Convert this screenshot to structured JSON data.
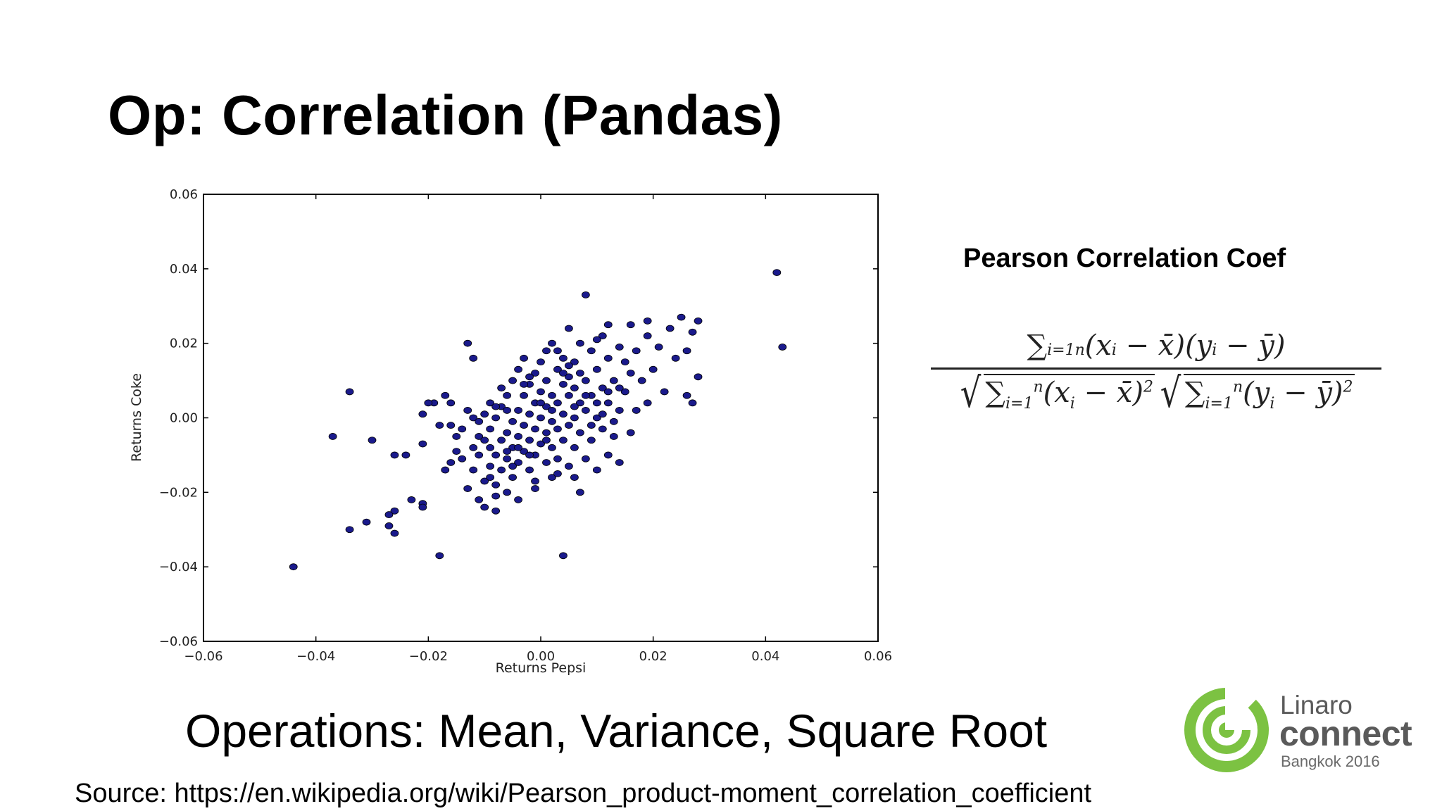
{
  "slide": {
    "title": "Op: Correlation (Pandas)",
    "subtitle": "Operations: Mean, Variance, Square Root",
    "source": "Source: https://en.wikipedia.org/wiki/Pearson_product-moment_correlation_coefficient"
  },
  "formula": {
    "heading": "Pearson Correlation Coef",
    "numerator": "∑i=1n (xi − x̄)(yi − ȳ)",
    "denominator": "√∑i=1n (xi − x̄)² √∑i=1n (yi − ȳ)²"
  },
  "logo": {
    "line1": "Linaro",
    "line2": "connect",
    "line3": "Bangkok 2016",
    "ring_color": "#7cc242"
  },
  "chart_data": {
    "type": "scatter",
    "xlabel": "Returns Pepsi",
    "ylabel": "Returns Coke",
    "xlim": [
      -0.06,
      0.06
    ],
    "ylim": [
      -0.06,
      0.06
    ],
    "xticks": [
      "−0.06",
      "−0.04",
      "−0.02",
      "0.00",
      "0.02",
      "0.04",
      "0.06"
    ],
    "yticks": [
      "0.06",
      "0.04",
      "0.02",
      "0.00",
      "−0.02",
      "−0.04",
      "−0.06"
    ],
    "marker_color": "#1a1a8c",
    "points": [
      [
        -0.044,
        -0.04
      ],
      [
        -0.034,
        -0.03
      ],
      [
        -0.031,
        -0.028
      ],
      [
        -0.027,
        -0.029
      ],
      [
        -0.026,
        -0.031
      ],
      [
        -0.026,
        -0.025
      ],
      [
        -0.027,
        -0.026
      ],
      [
        -0.023,
        -0.022
      ],
      [
        -0.021,
        -0.023
      ],
      [
        -0.021,
        -0.024
      ],
      [
        -0.018,
        -0.037
      ],
      [
        -0.037,
        -0.005
      ],
      [
        -0.034,
        0.007
      ],
      [
        -0.03,
        -0.006
      ],
      [
        -0.026,
        -0.01
      ],
      [
        -0.024,
        -0.01
      ],
      [
        -0.021,
        -0.007
      ],
      [
        -0.021,
        0.001
      ],
      [
        -0.019,
        0.004
      ],
      [
        -0.018,
        -0.002
      ],
      [
        -0.017,
        -0.014
      ],
      [
        -0.017,
        0.006
      ],
      [
        -0.016,
        -0.012
      ],
      [
        -0.016,
        -0.002
      ],
      [
        -0.015,
        -0.009
      ],
      [
        -0.015,
        -0.005
      ],
      [
        -0.014,
        -0.011
      ],
      [
        -0.014,
        -0.003
      ],
      [
        -0.013,
        0.002
      ],
      [
        -0.013,
        -0.019
      ],
      [
        -0.013,
        0.02
      ],
      [
        -0.012,
        0.016
      ],
      [
        -0.012,
        -0.008
      ],
      [
        -0.012,
        -0.014
      ],
      [
        -0.011,
        -0.022
      ],
      [
        -0.011,
        -0.01
      ],
      [
        -0.011,
        -0.005
      ],
      [
        -0.01,
        -0.024
      ],
      [
        -0.01,
        -0.017
      ],
      [
        -0.01,
        0.001
      ],
      [
        -0.009,
        -0.013
      ],
      [
        -0.009,
        -0.008
      ],
      [
        -0.009,
        -0.003
      ],
      [
        -0.009,
        0.004
      ],
      [
        -0.008,
        -0.025
      ],
      [
        -0.008,
        -0.018
      ],
      [
        -0.008,
        -0.01
      ],
      [
        -0.008,
        0.0
      ],
      [
        -0.007,
        -0.014
      ],
      [
        -0.007,
        -0.006
      ],
      [
        -0.007,
        0.003
      ],
      [
        -0.006,
        -0.02
      ],
      [
        -0.006,
        -0.011
      ],
      [
        -0.006,
        -0.004
      ],
      [
        -0.006,
        0.006
      ],
      [
        -0.005,
        -0.016
      ],
      [
        -0.005,
        -0.008
      ],
      [
        -0.005,
        -0.001
      ],
      [
        -0.005,
        0.01
      ],
      [
        -0.004,
        -0.022
      ],
      [
        -0.004,
        -0.012
      ],
      [
        -0.004,
        -0.005
      ],
      [
        -0.004,
        0.002
      ],
      [
        -0.004,
        0.013
      ],
      [
        -0.003,
        -0.009
      ],
      [
        -0.003,
        -0.002
      ],
      [
        -0.003,
        0.006
      ],
      [
        -0.003,
        0.016
      ],
      [
        -0.002,
        -0.014
      ],
      [
        -0.002,
        -0.006
      ],
      [
        -0.002,
        0.001
      ],
      [
        -0.002,
        0.009
      ],
      [
        -0.001,
        -0.019
      ],
      [
        -0.001,
        -0.01
      ],
      [
        -0.001,
        -0.003
      ],
      [
        -0.001,
        0.004
      ],
      [
        -0.001,
        0.012
      ],
      [
        0.0,
        -0.007
      ],
      [
        0.0,
        0.0
      ],
      [
        0.0,
        0.007
      ],
      [
        0.0,
        0.015
      ],
      [
        0.001,
        -0.012
      ],
      [
        0.001,
        -0.004
      ],
      [
        0.001,
        0.003
      ],
      [
        0.001,
        0.01
      ],
      [
        0.002,
        -0.016
      ],
      [
        0.002,
        -0.008
      ],
      [
        0.002,
        -0.001
      ],
      [
        0.002,
        0.006
      ],
      [
        0.002,
        0.02
      ],
      [
        0.003,
        -0.011
      ],
      [
        0.003,
        -0.003
      ],
      [
        0.003,
        0.004
      ],
      [
        0.003,
        0.013
      ],
      [
        0.004,
        -0.037
      ],
      [
        0.004,
        -0.006
      ],
      [
        0.004,
        0.001
      ],
      [
        0.004,
        0.009
      ],
      [
        0.004,
        0.016
      ],
      [
        0.005,
        -0.013
      ],
      [
        0.005,
        -0.002
      ],
      [
        0.005,
        0.006
      ],
      [
        0.005,
        0.011
      ],
      [
        0.005,
        0.024
      ],
      [
        0.006,
        -0.008
      ],
      [
        0.006,
        0.0
      ],
      [
        0.006,
        0.008
      ],
      [
        0.006,
        0.015
      ],
      [
        0.007,
        -0.02
      ],
      [
        0.007,
        -0.004
      ],
      [
        0.007,
        0.004
      ],
      [
        0.007,
        0.012
      ],
      [
        0.008,
        -0.011
      ],
      [
        0.008,
        0.002
      ],
      [
        0.008,
        0.01
      ],
      [
        0.008,
        0.033
      ],
      [
        0.009,
        -0.006
      ],
      [
        0.009,
        0.006
      ],
      [
        0.009,
        0.018
      ],
      [
        0.01,
        -0.014
      ],
      [
        0.01,
        0.0
      ],
      [
        0.01,
        0.013
      ],
      [
        0.011,
        -0.003
      ],
      [
        0.011,
        0.008
      ],
      [
        0.011,
        0.022
      ],
      [
        0.012,
        -0.01
      ],
      [
        0.012,
        0.004
      ],
      [
        0.012,
        0.016
      ],
      [
        0.013,
        -0.005
      ],
      [
        0.013,
        0.01
      ],
      [
        0.014,
        -0.012
      ],
      [
        0.014,
        0.002
      ],
      [
        0.014,
        0.019
      ],
      [
        0.015,
        0.007
      ],
      [
        0.015,
        0.015
      ],
      [
        0.016,
        -0.004
      ],
      [
        0.016,
        0.012
      ],
      [
        0.017,
        0.002
      ],
      [
        0.017,
        0.018
      ],
      [
        0.018,
        0.01
      ],
      [
        0.019,
        0.004
      ],
      [
        0.019,
        0.022
      ],
      [
        0.02,
        0.013
      ],
      [
        0.021,
        0.019
      ],
      [
        0.022,
        0.007
      ],
      [
        0.023,
        0.024
      ],
      [
        0.024,
        0.016
      ],
      [
        0.025,
        0.027
      ],
      [
        0.026,
        0.006
      ],
      [
        0.026,
        0.018
      ],
      [
        0.027,
        0.023
      ],
      [
        0.028,
        0.026
      ],
      [
        0.028,
        0.011
      ],
      [
        0.027,
        0.004
      ],
      [
        0.042,
        0.039
      ],
      [
        0.043,
        0.019
      ],
      [
        -0.02,
        0.004
      ],
      [
        -0.016,
        0.004
      ],
      [
        -0.012,
        0.0
      ],
      [
        -0.01,
        -0.006
      ],
      [
        -0.008,
        0.003
      ],
      [
        -0.006,
        0.002
      ],
      [
        -0.002,
        0.011
      ],
      [
        0.001,
        0.018
      ],
      [
        0.003,
        0.018
      ],
      [
        0.007,
        0.02
      ],
      [
        0.01,
        0.021
      ],
      [
        0.012,
        0.025
      ],
      [
        0.016,
        0.025
      ],
      [
        0.019,
        0.026
      ],
      [
        0.013,
        -0.001
      ],
      [
        0.006,
        -0.016
      ],
      [
        -0.001,
        -0.017
      ],
      [
        -0.005,
        -0.013
      ],
      [
        -0.008,
        -0.021
      ],
      [
        0.009,
        -0.002
      ],
      [
        0.011,
        0.001
      ],
      [
        0.003,
        -0.015
      ],
      [
        0.005,
        0.014
      ],
      [
        -0.003,
        0.009
      ],
      [
        -0.007,
        0.008
      ],
      [
        0.0,
        0.004
      ],
      [
        0.002,
        0.002
      ],
      [
        0.004,
        0.012
      ],
      [
        0.006,
        0.003
      ],
      [
        0.008,
        0.006
      ],
      [
        -0.004,
        -0.008
      ],
      [
        -0.002,
        -0.01
      ],
      [
        0.001,
        -0.006
      ],
      [
        -0.006,
        -0.009
      ],
      [
        0.01,
        0.004
      ],
      [
        0.012,
        0.007
      ],
      [
        0.014,
        0.008
      ],
      [
        -0.009,
        -0.016
      ],
      [
        -0.011,
        -0.001
      ]
    ]
  }
}
